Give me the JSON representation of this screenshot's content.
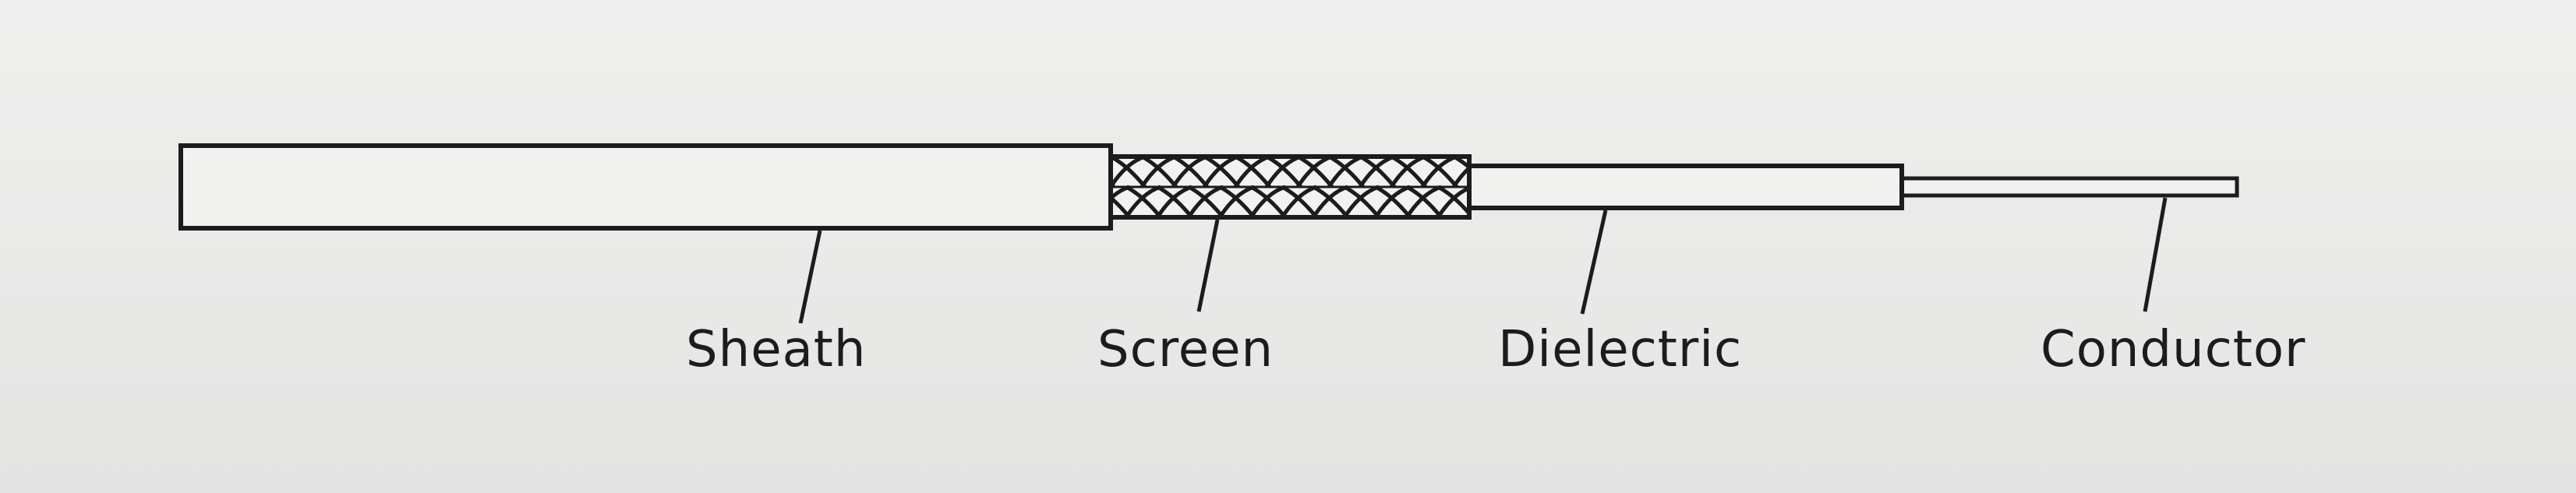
{
  "diagram": {
    "labels": {
      "sheath": "Sheath",
      "screen": "Screen",
      "dielectric": "Dielectric",
      "conductor": "Conductor"
    },
    "colors": {
      "ink": "#1c1c1c",
      "paper": "#ececeb",
      "layer_fill": "#f1f1f0"
    }
  }
}
